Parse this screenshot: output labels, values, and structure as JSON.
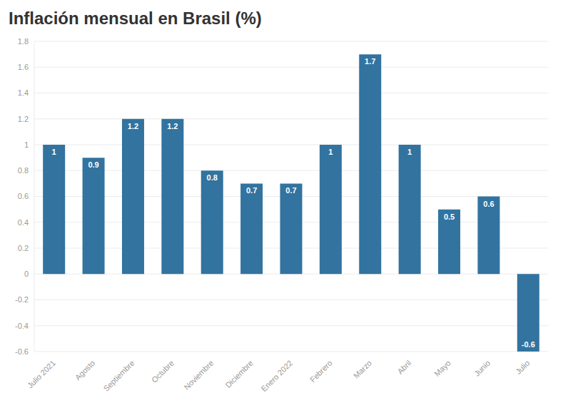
{
  "chart_data": {
    "type": "bar",
    "title": "Inflación mensual en Brasil (%)",
    "categories": [
      "Julio 2021",
      "Agosto",
      "Septiembre",
      "Octubre",
      "Noviembre",
      "Diciembre",
      "Enero 2022",
      "Febrero",
      "Marzo",
      "Abril",
      "Mayo",
      "Junio",
      "Julio"
    ],
    "values": [
      1,
      0.9,
      1.2,
      1.2,
      0.8,
      0.7,
      0.7,
      1,
      1.7,
      1,
      0.5,
      0.6,
      -0.6
    ],
    "color": "#32739f",
    "ylim": [
      -0.6,
      1.8
    ],
    "yticks": [
      -0.6,
      -0.4,
      -0.2,
      0,
      0.2,
      0.4,
      0.6,
      0.8,
      1,
      1.2,
      1.4,
      1.6,
      1.8
    ],
    "grid": true,
    "data_labels": true
  }
}
